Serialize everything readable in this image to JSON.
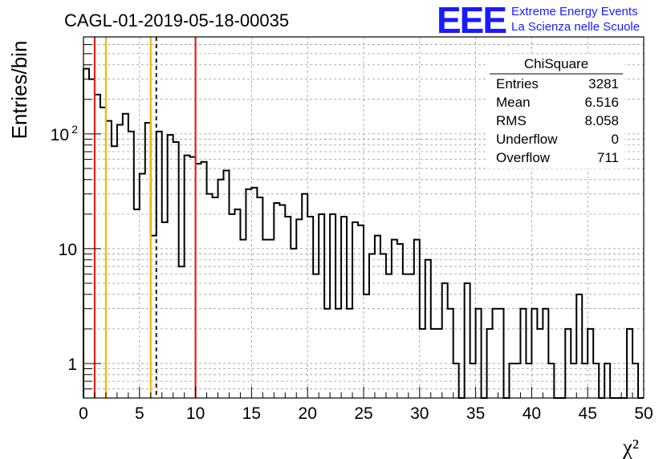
{
  "title": "CAGL-01-2019-05-18-00035",
  "brand": {
    "logo_text": "EEE",
    "line1": "Extreme Energy Events",
    "line2": "La Scienza nelle Scuole",
    "color": "#1a1aff"
  },
  "stats": {
    "title": "ChiSquare",
    "rows": [
      {
        "label": "Entries",
        "value": "3281"
      },
      {
        "label": "Mean",
        "value": "6.516"
      },
      {
        "label": "RMS",
        "value": "8.058"
      },
      {
        "label": "Underflow",
        "value": "0"
      },
      {
        "label": "Overflow",
        "value": "711"
      }
    ]
  },
  "chart_data": {
    "type": "bar",
    "style": "step-histogram",
    "xlabel": "χ²",
    "ylabel": "Entries/bin",
    "xlim": [
      0,
      50
    ],
    "ylim": [
      0.5,
      700
    ],
    "yscale": "log",
    "grid": true,
    "bin_width": 0.5,
    "x_ticks": [
      "0",
      "5",
      "10",
      "15",
      "20",
      "25",
      "30",
      "35",
      "40",
      "45",
      "50"
    ],
    "y_ticks": [
      {
        "value": 1,
        "label": "1"
      },
      {
        "value": 10,
        "label": "10"
      },
      {
        "value": 100,
        "label": "10",
        "sup": "2"
      }
    ],
    "values": [
      370,
      300,
      220,
      170,
      130,
      78,
      120,
      150,
      105,
      22,
      45,
      125,
      13,
      105,
      17,
      98,
      85,
      7,
      65,
      63,
      55,
      57,
      30,
      28,
      40,
      48,
      20,
      22,
      12,
      33,
      34,
      28,
      12,
      12,
      25,
      24,
      19,
      10,
      18,
      30,
      19,
      6,
      20,
      3,
      20,
      3,
      19,
      3,
      17,
      16,
      4,
      9,
      13,
      9,
      6,
      12,
      11,
      6,
      6,
      12,
      2,
      8,
      2,
      2,
      5,
      3,
      1,
      0,
      5,
      1,
      3,
      0,
      2,
      3,
      3,
      0,
      1,
      1,
      3,
      1,
      3,
      2,
      3,
      1,
      0,
      0,
      2,
      1,
      4,
      1,
      2,
      1,
      0,
      1,
      0,
      0,
      0,
      2,
      1,
      0
    ],
    "vertical_lines": [
      {
        "x": 1,
        "color": "#e02020"
      },
      {
        "x": 2,
        "color": "#f5b800"
      },
      {
        "x": 6,
        "color": "#f5b800"
      },
      {
        "x": 10,
        "color": "#e02020"
      },
      {
        "x": 6.5,
        "color": "#000000",
        "dashed": true
      }
    ]
  }
}
